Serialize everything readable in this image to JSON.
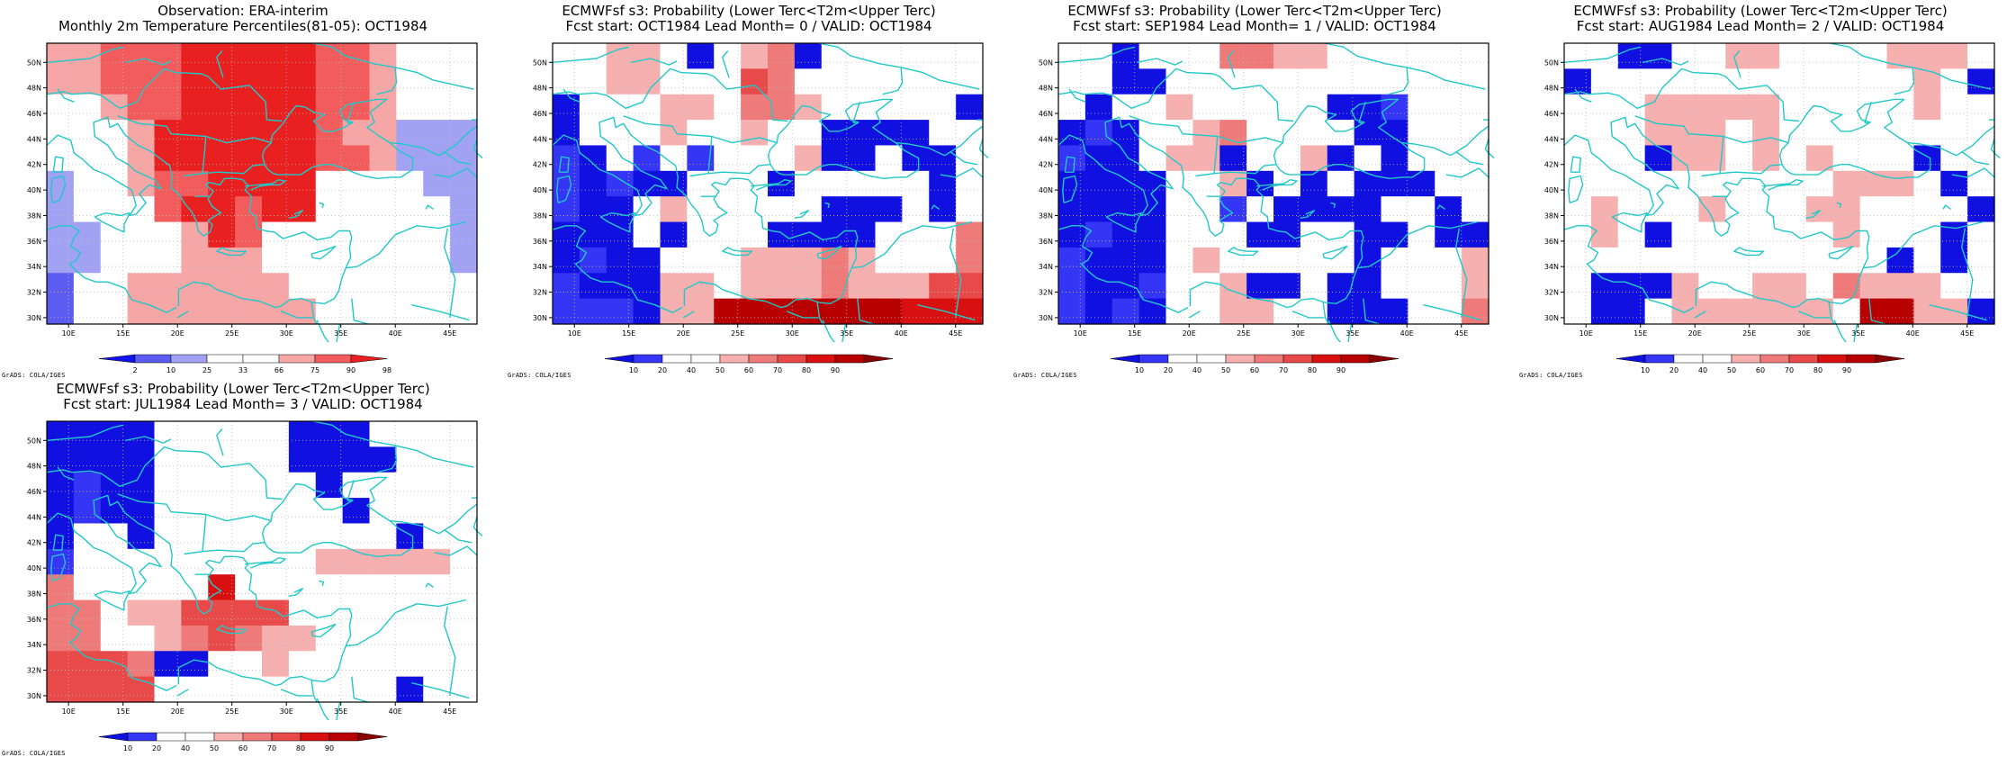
{
  "colors": {
    "coast": "#22c8c8",
    "grid": "#bdbdbd",
    "prob_scale": [
      "#1010e0",
      "#3535f5",
      "#ffffff",
      "#ffffff",
      "#f6b0b0",
      "#ef7a7a",
      "#e84a4a",
      "#d81010",
      "#b80000",
      "#8a0000"
    ],
    "pct_scale": [
      "#1212ee",
      "#5c5cf2",
      "#a2a2f4",
      "#ffffff",
      "#ffffff",
      "#f7a6a6",
      "#f25c5c",
      "#e82020"
    ]
  },
  "credit": "GrADS: COLA/IGES",
  "axis": {
    "lon_labels": [
      "10E",
      "15E",
      "20E",
      "25E",
      "30E",
      "35E",
      "40E",
      "45E"
    ],
    "lat_labels": [
      "30N",
      "32N",
      "34N",
      "36N",
      "38N",
      "40N",
      "42N",
      "44N",
      "46N",
      "48N",
      "50N"
    ]
  },
  "panels": [
    {
      "id": "obs",
      "title_line1": "Observation: ERA-interim",
      "title_line2": "Monthly 2m Temperature Percentiles(81-05): OCT1984",
      "colorbar_labels": [
        "2",
        "10",
        "25",
        "33",
        "66",
        "75",
        "90",
        "98"
      ],
      "scale": "pct",
      "grid": [
        "5566677777665444",
        "5566677777665444",
        "4456677777665444",
        "3445777777655222",
        "3345777777665222",
        "2345667777444322",
        "2444677677444432",
        "2244457644444442",
        "2244455544444442",
        "1345555554444444",
        "1345555555444444"
      ]
    },
    {
      "id": "lead0",
      "title_line1": "ECMWFsf s3: Probability (Lower Terc<T2m<Upper Terc)",
      "title_line2": "Fcst start: OCT1984  Lead Month= 0 / VALID: OCT1984",
      "colorbar_labels": [
        "10",
        "20",
        "40",
        "50",
        "60",
        "70",
        "80",
        "90"
      ],
      "scale": "prob",
      "grid": [
        "2244202450222222",
        "2244222652222222",
        "0222442554222220",
        "0222432422000022",
        "1021212224002002",
        "1010022202222202",
        "1002422222000202",
        "0002022200002225",
        "0100222444543225",
        "1000442444544466",
        "1110448888888777"
      ]
    },
    {
      "id": "lead1",
      "title_line1": "ECMWFsf s3: Probability (Lower Terc<T2m<Upper Terc)",
      "title_line2": "Fcst start: SEP1984  Lead Month= 1 / VALID: OCT1984",
      "colorbar_labels": [
        "10",
        "20",
        "40",
        "50",
        "60",
        "70",
        "80",
        "90"
      ],
      "scale": "prob",
      "grid": [
        "2202225544222222",
        "2200222222222222",
        "2022422222001222",
        "0102245222200222",
        "1002440224020222",
        "0000224020200022",
        "0000221200002202",
        "0100222002200200",
        "1000242222202224",
        "1001224002002224",
        "1010224422000225"
      ]
    },
    {
      "id": "lead2",
      "title_line1": "ECMWFsf s3: Probability (Lower Terc<T2m<Upper Terc)",
      "title_line2": "Fcst start: AUG1984  Lead Month= 2 / VALID: OCT1984",
      "colorbar_labels": [
        "10",
        "20",
        "40",
        "50",
        "60",
        "70",
        "80",
        "90"
      ],
      "scale": "prob",
      "grid": [
        "2200224422224442",
        "0222222222222420",
        "2224444422222422",
        "2224442422222222",
        "2220442424222022",
        "2222222222444202",
        "2422242224422220",
        "2420222222422202",
        "2222222222220202",
        "2000422442544422",
        "2002444444288440"
      ]
    },
    {
      "id": "lead3",
      "title_line1": "ECMWFsf s3: Probability (Lower Terc<T2m<Upper Terc)",
      "title_line2": "Fcst start: JUL1984  Lead Month= 3 / VALID: OCT1984",
      "colorbar_labels": [
        "10",
        "20",
        "40",
        "50",
        "60",
        "70",
        "80",
        "90"
      ],
      "scale": "prob",
      "grid": [
        "0000222220002222",
        "0000222220000222",
        "0100222222022222",
        "0100222222202222",
        "0220222222222022",
        "1222222222444442",
        "5222227222222222",
        "5524466662222222",
        "5522456544222222",
        "6665002242222222",
        "6666222222222022"
      ]
    }
  ]
}
